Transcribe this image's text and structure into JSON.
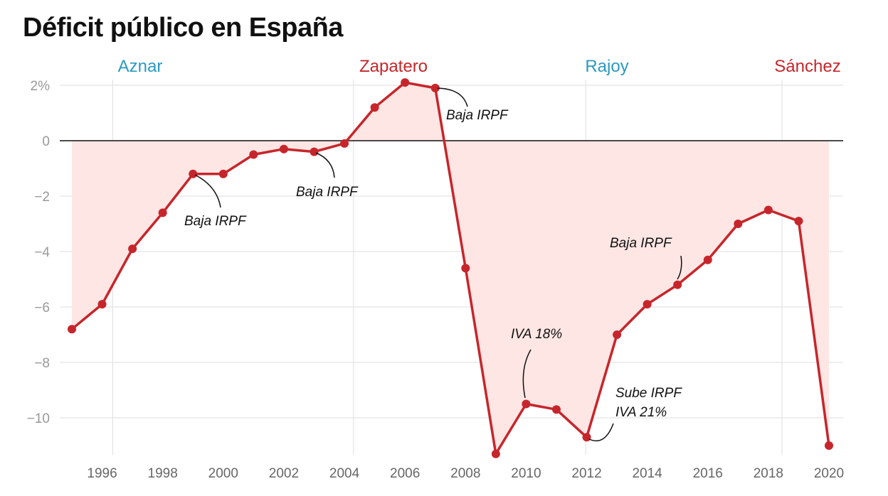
{
  "chart_data": {
    "type": "line",
    "title": "Déficit público en España",
    "xlabel": "",
    "ylabel": "",
    "x": [
      1995,
      1996,
      1997,
      1998,
      1999,
      2000,
      2001,
      2002,
      2003,
      2004,
      2005,
      2006,
      2007,
      2008,
      2009,
      2010,
      2011,
      2012,
      2013,
      2014,
      2015,
      2016,
      2017,
      2018,
      2019,
      2020
    ],
    "values": [
      -6.8,
      -5.9,
      -3.9,
      -2.6,
      -1.2,
      -1.2,
      -0.5,
      -0.3,
      -0.4,
      -0.1,
      1.2,
      2.1,
      1.9,
      -4.6,
      -11.3,
      -9.5,
      -9.7,
      -10.7,
      -7.0,
      -5.9,
      -5.2,
      -4.3,
      -3.0,
      -2.5,
      -2.9,
      -11.0
    ],
    "ylim": [
      -11.8,
      2.3
    ],
    "xlim": [
      1994.6,
      2020.5
    ],
    "yticks": [
      {
        "v": 2,
        "label": "2%"
      },
      {
        "v": 0,
        "label": "0"
      },
      {
        "v": -2,
        "label": "−2"
      },
      {
        "v": -4,
        "label": "−4"
      },
      {
        "v": -6,
        "label": "−6"
      },
      {
        "v": -8,
        "label": "−8"
      },
      {
        "v": -10,
        "label": "−10"
      }
    ],
    "xticks": [
      1996,
      1998,
      2000,
      2002,
      2004,
      2006,
      2008,
      2010,
      2012,
      2014,
      2016,
      2018,
      2020
    ],
    "grid": true,
    "periods": [
      {
        "name": "Aznar",
        "start": 1996.35,
        "color": "#2a9ac0"
      },
      {
        "name": "Zapatero",
        "start": 2004.3,
        "color": "#c6262b"
      },
      {
        "name": "Rajoy",
        "start": 2011.97,
        "color": "#2a9ac0"
      },
      {
        "name": "Sánchez",
        "start": 2018.45,
        "color": "#c6262b"
      }
    ],
    "annotations": [
      {
        "year": 1999,
        "lines": [
          "Baja IRPF"
        ]
      },
      {
        "year": 2003,
        "lines": [
          "Baja IRPF"
        ]
      },
      {
        "year": 2007,
        "lines": [
          "Baja IRPF"
        ]
      },
      {
        "year": 2010,
        "lines": [
          "IVA 18%"
        ]
      },
      {
        "year": 2015,
        "lines": [
          "Baja IRPF"
        ]
      },
      {
        "year": 2012,
        "lines": [
          "Sube IRPF",
          "IVA 21%"
        ]
      }
    ],
    "colors": {
      "line": "#c6262b",
      "fill": "#fde6e4",
      "grid": "#e3e3e3"
    }
  }
}
